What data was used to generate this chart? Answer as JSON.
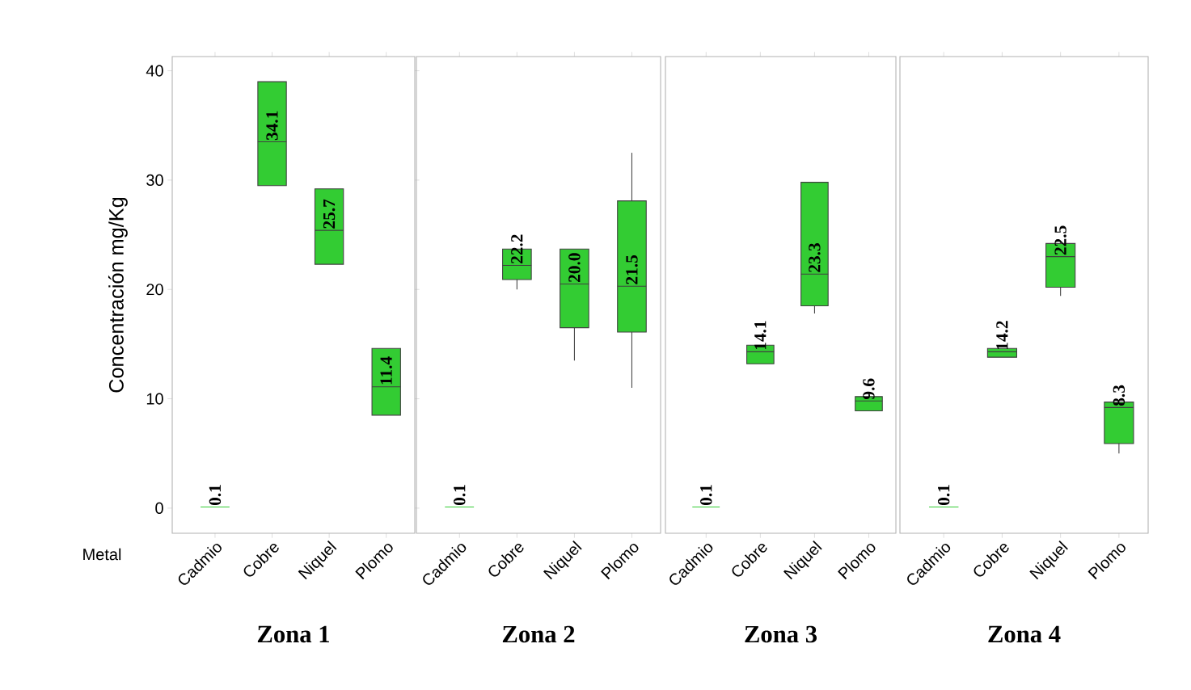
{
  "chart_data": [
    {
      "type": "box",
      "title": "Zona 1",
      "xlabel": "Metal",
      "ylabel": "Concentración mg/Kg",
      "categories": [
        "Cadmio",
        "Cobre",
        "Niquel",
        "Plomo"
      ],
      "color": "#33cc33",
      "ylim": [
        -2.3,
        41.3
      ],
      "yticks": [
        0,
        10,
        20,
        30,
        40
      ],
      "boxes": [
        {
          "low": 0.1,
          "q1": 0.1,
          "median": 0.1,
          "q3": 0.1,
          "high": 0.1
        },
        {
          "low": 29.5,
          "q1": 29.5,
          "median": 33.5,
          "q3": 39.0,
          "high": 39.0
        },
        {
          "low": 22.3,
          "q1": 22.3,
          "median": 25.4,
          "q3": 29.2,
          "high": 29.2
        },
        {
          "low": 8.5,
          "q1": 8.5,
          "median": 11.1,
          "q3": 14.6,
          "high": 14.6
        }
      ],
      "annotations": [
        "0.1",
        "34.1",
        "25.7",
        "11.4"
      ]
    },
    {
      "type": "box",
      "title": "Zona 2",
      "categories": [
        "Cadmio",
        "Cobre",
        "Niquel",
        "Plomo"
      ],
      "color": "#33cc33",
      "ylim": [
        -2.3,
        41.3
      ],
      "tick_labels": "x",
      "boxes": [
        {
          "low": 0.1,
          "q1": 0.1,
          "median": 0.1,
          "q3": 0.1,
          "high": 0.1
        },
        {
          "low": 20.0,
          "q1": 20.9,
          "median": 22.2,
          "q3": 23.7,
          "high": 23.7
        },
        {
          "low": 13.5,
          "q1": 16.5,
          "median": 20.5,
          "q3": 23.7,
          "high": 23.7
        },
        {
          "low": 11.0,
          "q1": 16.1,
          "median": 20.3,
          "q3": 28.1,
          "high": 32.5
        }
      ],
      "annotations": [
        "0.1",
        "22.2",
        "20.0",
        "21.5"
      ]
    },
    {
      "type": "box",
      "title": "Zona 3",
      "categories": [
        "Cadmio",
        "Cobre",
        "Niquel",
        "Plomo"
      ],
      "color": "#33cc33",
      "ylim": [
        -2.3,
        41.3
      ],
      "tick_labels": "x",
      "boxes": [
        {
          "low": 0.1,
          "q1": 0.1,
          "median": 0.1,
          "q3": 0.1,
          "high": 0.1
        },
        {
          "low": 13.2,
          "q1": 13.2,
          "median": 14.3,
          "q3": 14.9,
          "high": 14.9
        },
        {
          "low": 17.8,
          "q1": 18.5,
          "median": 21.4,
          "q3": 29.8,
          "high": 29.8
        },
        {
          "low": 8.9,
          "q1": 8.9,
          "median": 9.8,
          "q3": 10.2,
          "high": 10.5
        }
      ],
      "annotations": [
        "0.1",
        "14.1",
        "23.3",
        "9.6"
      ]
    },
    {
      "type": "box",
      "title": "Zona 4",
      "categories": [
        "Cadmio",
        "Cobre",
        "Niquel",
        "Plomo"
      ],
      "color": "#33cc33",
      "ylim": [
        -2.3,
        41.3
      ],
      "tick_labels": "x",
      "boxes": [
        {
          "low": 0.1,
          "q1": 0.1,
          "median": 0.1,
          "q3": 0.1,
          "high": 0.1
        },
        {
          "low": 13.8,
          "q1": 13.8,
          "median": 14.3,
          "q3": 14.6,
          "high": 14.6
        },
        {
          "low": 19.4,
          "q1": 20.2,
          "median": 23.0,
          "q3": 24.2,
          "high": 24.4
        },
        {
          "low": 5.0,
          "q1": 5.9,
          "median": 9.2,
          "q3": 9.7,
          "high": 9.7
        }
      ],
      "annotations": [
        "0.1",
        "14.2",
        "22.5",
        "8.3"
      ]
    }
  ]
}
